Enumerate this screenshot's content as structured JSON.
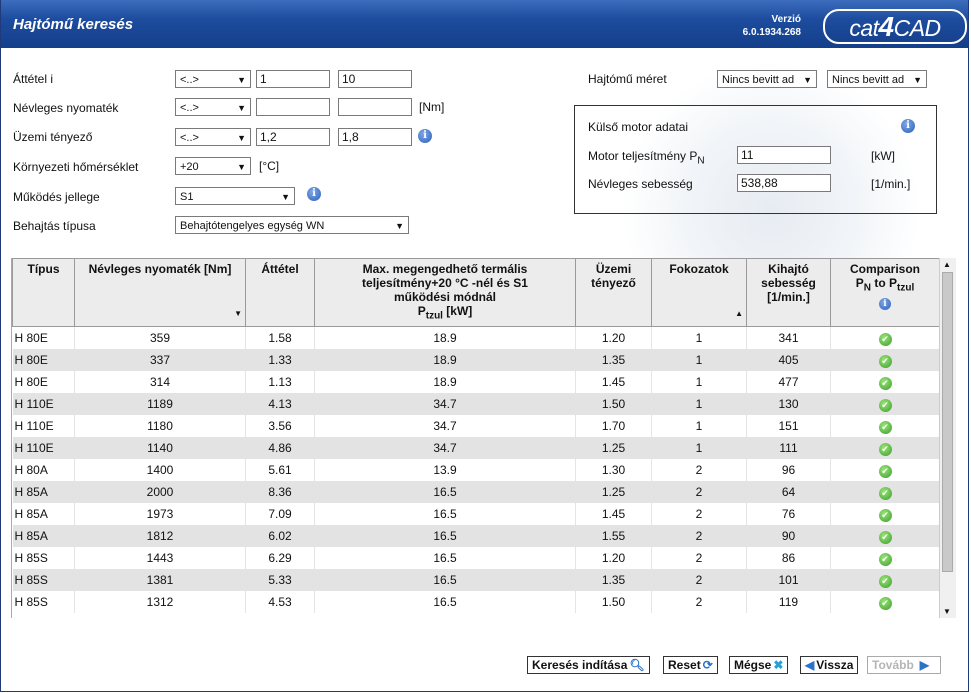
{
  "header": {
    "title": "Hajtómű keresés",
    "version_label": "Verzió",
    "version_number": "6.0.1934.268",
    "logo": "cat4CAD"
  },
  "form": {
    "ratio": {
      "label": "Áttétel i",
      "op": "<..>",
      "min": "1",
      "max": "10"
    },
    "torque": {
      "label": "Névleges nyomaték",
      "op": "<..>",
      "min": "",
      "max": "",
      "unit": "[Nm]"
    },
    "service_factor": {
      "label": "Üzemi tényező",
      "op": "<..>",
      "min": "1,2",
      "max": "1,8"
    },
    "ambient_temp": {
      "label": "Környezeti hőmérséklet",
      "value": "+20",
      "unit": "[°C]"
    },
    "operation_mode": {
      "label": "Működés jellege",
      "value": "S1"
    },
    "drive_type": {
      "label": "Behajtás típusa",
      "value": "Behajtótengelyes egység WN"
    },
    "gearbox_size": {
      "label": "Hajtómű méret",
      "value1": "Nincs bevitt ad",
      "value2": "Nincs bevitt ad"
    }
  },
  "motor": {
    "title": "Külső motor adatai",
    "power_label": "Motor teljesítmény P",
    "power_sub": "N",
    "power_value": "11",
    "power_unit": "[kW]",
    "speed_label": "Névleges sebesség",
    "speed_value": "538,88",
    "speed_unit": "[1/min.]"
  },
  "table": {
    "headers": {
      "type": "Típus",
      "torque": "Névleges nyomaték [Nm]",
      "ratio": "Áttétel",
      "power_l1": "Max. megengedhető termális",
      "power_l2": "teljesítmény+20 °C -nél és S1",
      "power_l3": "működési módnál",
      "power_l4a": "P",
      "power_l4sub": "tzul",
      "power_l4b": " [kW]",
      "sf": "Üzemi tényező",
      "stages": "Fokozatok",
      "speed": "Kihajtó sebesség [1/min.]",
      "cmp_l1": "Comparison",
      "cmp_l2a": "P",
      "cmp_l2sub": "N",
      "cmp_l2b": " to P",
      "cmp_l2sub2": "tzul"
    },
    "rows": [
      {
        "type": "H 80E",
        "torque": "359",
        "ratio": "1.58",
        "power": "18.9",
        "sf": "1.20",
        "stages": "1",
        "speed": "341"
      },
      {
        "type": "H 80E",
        "torque": "337",
        "ratio": "1.33",
        "power": "18.9",
        "sf": "1.35",
        "stages": "1",
        "speed": "405"
      },
      {
        "type": "H 80E",
        "torque": "314",
        "ratio": "1.13",
        "power": "18.9",
        "sf": "1.45",
        "stages": "1",
        "speed": "477"
      },
      {
        "type": "H 110E",
        "torque": "1189",
        "ratio": "4.13",
        "power": "34.7",
        "sf": "1.50",
        "stages": "1",
        "speed": "130"
      },
      {
        "type": "H 110E",
        "torque": "1180",
        "ratio": "3.56",
        "power": "34.7",
        "sf": "1.70",
        "stages": "1",
        "speed": "151"
      },
      {
        "type": "H 110E",
        "torque": "1140",
        "ratio": "4.86",
        "power": "34.7",
        "sf": "1.25",
        "stages": "1",
        "speed": "111"
      },
      {
        "type": "H 80A",
        "torque": "1400",
        "ratio": "5.61",
        "power": "13.9",
        "sf": "1.30",
        "stages": "2",
        "speed": "96"
      },
      {
        "type": "H 85A",
        "torque": "2000",
        "ratio": "8.36",
        "power": "16.5",
        "sf": "1.25",
        "stages": "2",
        "speed": "64"
      },
      {
        "type": "H 85A",
        "torque": "1973",
        "ratio": "7.09",
        "power": "16.5",
        "sf": "1.45",
        "stages": "2",
        "speed": "76"
      },
      {
        "type": "H 85A",
        "torque": "1812",
        "ratio": "6.02",
        "power": "16.5",
        "sf": "1.55",
        "stages": "2",
        "speed": "90"
      },
      {
        "type": "H 85S",
        "torque": "1443",
        "ratio": "6.29",
        "power": "16.5",
        "sf": "1.20",
        "stages": "2",
        "speed": "86"
      },
      {
        "type": "H 85S",
        "torque": "1381",
        "ratio": "5.33",
        "power": "16.5",
        "sf": "1.35",
        "stages": "2",
        "speed": "101"
      },
      {
        "type": "H 85S",
        "torque": "1312",
        "ratio": "4.53",
        "power": "16.5",
        "sf": "1.50",
        "stages": "2",
        "speed": "119"
      }
    ]
  },
  "buttons": {
    "search": "Keresés indítása",
    "reset": "Reset",
    "cancel": "Mégse",
    "back": "Vissza",
    "next": "Tovább"
  }
}
